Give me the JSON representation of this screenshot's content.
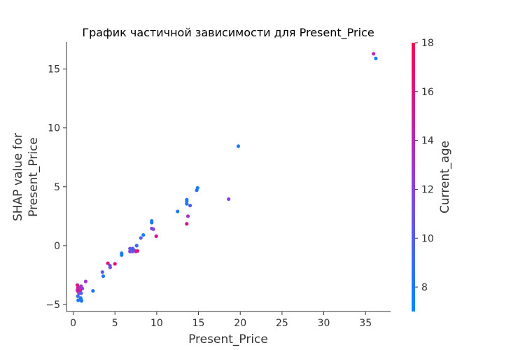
{
  "chart_data": {
    "type": "scatter",
    "title": "График частичной зависимости для Present_Price",
    "xlabel": "Present_Price",
    "ylabel_lines": [
      "SHAP value for",
      "Present_Price"
    ],
    "xlim": [
      -0.8,
      38.0
    ],
    "ylim": [
      -5.6,
      17.3
    ],
    "xticks": [
      0,
      5,
      10,
      15,
      20,
      25,
      30,
      35
    ],
    "yticks": [
      -5,
      0,
      5,
      10,
      15
    ],
    "colorbar": {
      "label": "Current_age",
      "min": 7,
      "max": 18,
      "ticks": [
        8,
        10,
        12,
        14,
        16,
        18
      ],
      "color_low": "#0088ff",
      "color_mid": "#9a3bd6",
      "color_high": "#ff0052"
    },
    "points": [
      {
        "x": 35.96,
        "y": 16.3,
        "c": 14
      },
      {
        "x": 36.23,
        "y": 15.9,
        "c": 8
      },
      {
        "x": 19.77,
        "y": 8.45,
        "c": 8
      },
      {
        "x": 18.61,
        "y": 3.95,
        "c": 12
      },
      {
        "x": 14.89,
        "y": 4.9,
        "c": 8
      },
      {
        "x": 14.79,
        "y": 4.7,
        "c": 8
      },
      {
        "x": 13.6,
        "y": 3.9,
        "c": 8
      },
      {
        "x": 13.6,
        "y": 3.75,
        "c": 8
      },
      {
        "x": 13.6,
        "y": 3.55,
        "c": 8
      },
      {
        "x": 14.0,
        "y": 3.4,
        "c": 10
      },
      {
        "x": 12.5,
        "y": 2.9,
        "c": 8
      },
      {
        "x": 13.74,
        "y": 2.5,
        "c": 13
      },
      {
        "x": 13.6,
        "y": 1.85,
        "c": 16
      },
      {
        "x": 9.4,
        "y": 2.1,
        "c": 8
      },
      {
        "x": 9.4,
        "y": 1.95,
        "c": 8
      },
      {
        "x": 9.4,
        "y": 1.45,
        "c": 11
      },
      {
        "x": 9.6,
        "y": 1.4,
        "c": 12
      },
      {
        "x": 9.94,
        "y": 0.8,
        "c": 16
      },
      {
        "x": 8.4,
        "y": 0.9,
        "c": 8
      },
      {
        "x": 8.1,
        "y": 0.65,
        "c": 10
      },
      {
        "x": 7.6,
        "y": 0.0,
        "c": 9
      },
      {
        "x": 7.13,
        "y": -0.25,
        "c": 10
      },
      {
        "x": 6.8,
        "y": -0.25,
        "c": 11
      },
      {
        "x": 6.95,
        "y": -0.35,
        "c": 9
      },
      {
        "x": 7.3,
        "y": -0.4,
        "c": 10
      },
      {
        "x": 6.8,
        "y": -0.5,
        "c": 12
      },
      {
        "x": 7.5,
        "y": -0.5,
        "c": 15
      },
      {
        "x": 7.7,
        "y": -0.45,
        "c": 16
      },
      {
        "x": 7.1,
        "y": -0.5,
        "c": 10
      },
      {
        "x": 5.8,
        "y": -0.65,
        "c": 8
      },
      {
        "x": 5.8,
        "y": -0.8,
        "c": 8
      },
      {
        "x": 5.0,
        "y": -1.55,
        "c": 16
      },
      {
        "x": 4.15,
        "y": -1.5,
        "c": 16
      },
      {
        "x": 4.4,
        "y": -1.7,
        "c": 11
      },
      {
        "x": 4.43,
        "y": -1.85,
        "c": 11
      },
      {
        "x": 3.5,
        "y": -2.25,
        "c": 10
      },
      {
        "x": 3.6,
        "y": -2.6,
        "c": 8
      },
      {
        "x": 1.5,
        "y": -3.05,
        "c": 13
      },
      {
        "x": 2.37,
        "y": -3.85,
        "c": 8
      },
      {
        "x": 0.5,
        "y": -3.35,
        "c": 16
      },
      {
        "x": 0.55,
        "y": -3.6,
        "c": 15
      },
      {
        "x": 0.75,
        "y": -3.55,
        "c": 14
      },
      {
        "x": 0.95,
        "y": -3.45,
        "c": 13
      },
      {
        "x": 1.1,
        "y": -3.65,
        "c": 12
      },
      {
        "x": 0.5,
        "y": -3.8,
        "c": 14
      },
      {
        "x": 0.6,
        "y": -3.9,
        "c": 16
      },
      {
        "x": 0.85,
        "y": -3.8,
        "c": 15
      },
      {
        "x": 0.7,
        "y": -4.05,
        "c": 12
      },
      {
        "x": 0.95,
        "y": -4.05,
        "c": 10
      },
      {
        "x": 0.55,
        "y": -4.3,
        "c": 9
      },
      {
        "x": 0.9,
        "y": -4.45,
        "c": 8
      },
      {
        "x": 0.95,
        "y": -4.6,
        "c": 8
      },
      {
        "x": 0.6,
        "y": -4.65,
        "c": 8
      },
      {
        "x": 1.0,
        "y": -4.7,
        "c": 8
      }
    ]
  }
}
